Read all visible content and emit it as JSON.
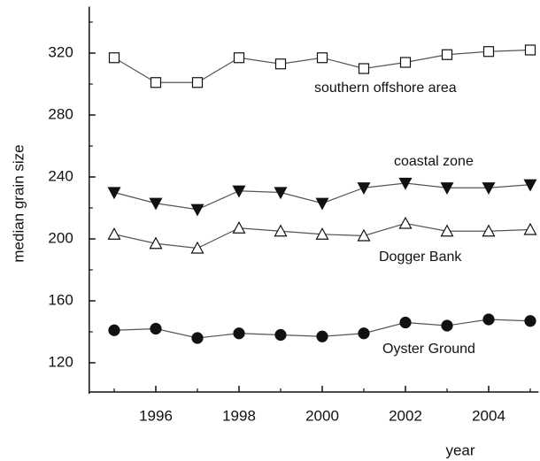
{
  "chart_data": {
    "type": "line",
    "x_label": "year",
    "y_label": "median grain size",
    "x": [
      1995,
      1996,
      1997,
      1998,
      1999,
      2000,
      2001,
      2002,
      2003,
      2004,
      2005
    ],
    "series": [
      {
        "name": "southern offshore area",
        "color": "#555555",
        "marker": "square",
        "filled": false,
        "values": [
          317,
          301,
          301,
          317,
          313,
          317,
          310,
          314,
          319,
          321,
          322
        ]
      },
      {
        "name": "coastal zone",
        "color": "#555555",
        "marker": "triangle-down",
        "filled": true,
        "values": [
          230,
          223,
          219,
          231,
          230,
          223,
          233,
          236,
          233,
          233,
          235
        ]
      },
      {
        "name": "Dogger Bank",
        "color": "#555555",
        "marker": "triangle-up",
        "filled": false,
        "values": [
          203,
          197,
          194,
          207,
          205,
          203,
          202,
          210,
          205,
          205,
          206
        ]
      },
      {
        "name": "Oyster Ground",
        "color": "#555555",
        "marker": "circle",
        "filled": true,
        "values": [
          141,
          142,
          136,
          139,
          138,
          137,
          139,
          146,
          144,
          148,
          147
        ]
      }
    ],
    "xlim": [
      1994.4,
      2005.2
    ],
    "xticks": [
      1996,
      1998,
      2000,
      2002,
      2004
    ],
    "ylim": [
      100,
      350
    ],
    "yticks": [
      120,
      160,
      200,
      240,
      280,
      320
    ],
    "grid": false
  }
}
